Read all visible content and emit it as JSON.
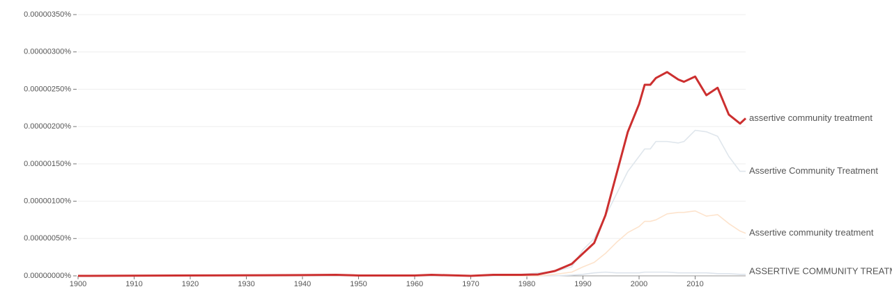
{
  "chart_data": {
    "type": "line",
    "x": [
      1900,
      1940,
      1946,
      1950,
      1960,
      1963,
      1970,
      1974,
      1979,
      1982,
      1985,
      1988,
      1990,
      1992,
      1994,
      1996,
      1998,
      2000,
      2001,
      2002,
      2003,
      2005,
      2007,
      2008,
      2010,
      2012,
      2014,
      2016,
      2018,
      2019
    ],
    "series": [
      {
        "name": "assertive community treatment",
        "color": "#cc2f2f",
        "values": [
          0,
          1e-08,
          1.4e-08,
          5e-09,
          5e-09,
          1.4e-08,
          0,
          1.4e-08,
          1.4e-08,
          1.9e-08,
          6.5e-08,
          1.6e-07,
          3e-07,
          4.4e-07,
          8.1e-07,
          1.37e-06,
          1.93e-06,
          2.3e-06,
          2.56e-06,
          2.56e-06,
          2.65e-06,
          2.73e-06,
          2.63e-06,
          2.6e-06,
          2.67e-06,
          2.42e-06,
          2.52e-06,
          2.16e-06,
          2.04e-06,
          2.11e-06
        ]
      },
      {
        "name": "Assertive Community Treatment",
        "color": "#dfe6ec",
        "values": [
          0,
          0,
          0,
          0,
          0,
          0,
          0,
          0,
          2e-08,
          4e-08,
          6e-08,
          1.2e-07,
          3.5e-07,
          5e-07,
          8e-07,
          1.1e-06,
          1.4e-06,
          1.6e-06,
          1.7e-06,
          1.7e-06,
          1.8e-06,
          1.8e-06,
          1.78e-06,
          1.8e-06,
          1.95e-06,
          1.93e-06,
          1.87e-06,
          1.6e-06,
          1.4e-06,
          1.4e-06
        ]
      },
      {
        "name": "Assertive community treatment",
        "color": "#fde3cc",
        "values": [
          0,
          0,
          0,
          0,
          0,
          0,
          0,
          0,
          0,
          0,
          2e-08,
          5e-08,
          1.2e-07,
          1.8e-07,
          3e-07,
          4.5e-07,
          5.8e-07,
          6.6e-07,
          7.3e-07,
          7.3e-07,
          7.5e-07,
          8.3e-07,
          8.5e-07,
          8.5e-07,
          8.7e-07,
          8e-07,
          8.2e-07,
          7e-07,
          6e-07,
          5.7e-07
        ]
      },
      {
        "name": "ASSERTIVE COMMUNITY TREATMENT",
        "color": "#dde4ec",
        "values": [
          0,
          0,
          0,
          0,
          0,
          0,
          0,
          0,
          0,
          0,
          0,
          1e-08,
          2e-08,
          4e-08,
          5e-08,
          4e-08,
          4e-08,
          4e-08,
          5e-08,
          5e-08,
          5e-08,
          5e-08,
          4e-08,
          4e-08,
          4e-08,
          4e-08,
          3e-08,
          3e-08,
          2e-08,
          2e-08
        ]
      }
    ],
    "xlim": [
      1900,
      2019
    ],
    "xticks": [
      1900,
      1910,
      1920,
      1930,
      1940,
      1950,
      1960,
      1970,
      1980,
      1990,
      2000,
      2010
    ],
    "ylim": [
      0,
      3.5e-06
    ],
    "yticks": [
      {
        "value": 0,
        "label": "0.00000000%"
      },
      {
        "value": 5e-07,
        "label": "0.00000050%"
      },
      {
        "value": 1e-06,
        "label": "0.00000100%"
      },
      {
        "value": 1.5e-06,
        "label": "0.00000150%"
      },
      {
        "value": 2e-06,
        "label": "0.00000200%"
      },
      {
        "value": 2.5e-06,
        "label": "0.00000250%"
      },
      {
        "value": 3e-06,
        "label": "0.00000300%"
      },
      {
        "value": 3.5e-06,
        "label": "0.00000350%"
      }
    ],
    "grid": true
  }
}
